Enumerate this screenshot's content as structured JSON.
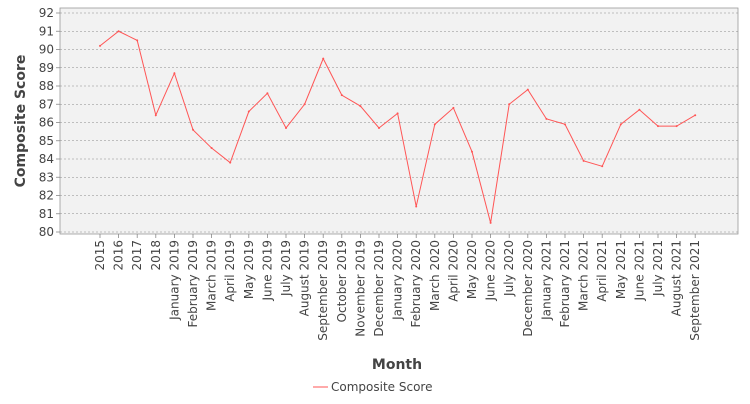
{
  "chart_data": {
    "type": "line",
    "title": "",
    "xlabel": "Month",
    "ylabel": "Composite Score",
    "ylim": [
      80,
      92
    ],
    "yticks": [
      80,
      81,
      82,
      83,
      84,
      85,
      86,
      87,
      88,
      89,
      90,
      91,
      92
    ],
    "grid": true,
    "legend_position": "bottom-center",
    "categories": [
      "2015",
      "2016",
      "2017",
      "2018",
      "January 2019",
      "February 2019",
      "March 2019",
      "April 2019",
      "May 2019",
      "June 2019",
      "July 2019",
      "August 2019",
      "September 2019",
      "October 2019",
      "November 2019",
      "December 2019",
      "January 2020",
      "February 2020",
      "March 2020",
      "April 2020",
      "May 2020",
      "June 2020",
      "July 2020",
      "December 2020",
      "January 2021",
      "February 2021",
      "March 2021",
      "April 2021",
      "May 2021",
      "June 2021",
      "July 2021",
      "August 2021",
      "September 2021"
    ],
    "series": [
      {
        "name": "Composite Score",
        "color": "#ff5555",
        "values": [
          90.2,
          91.0,
          90.5,
          86.4,
          88.7,
          85.6,
          84.6,
          83.8,
          86.6,
          87.6,
          85.7,
          87.0,
          89.5,
          87.5,
          86.9,
          85.7,
          86.5,
          81.4,
          85.9,
          86.8,
          84.4,
          80.5,
          87.0,
          87.8,
          86.2,
          85.9,
          83.9,
          83.6,
          85.9,
          86.7,
          85.8,
          85.8,
          86.4
        ]
      }
    ]
  }
}
